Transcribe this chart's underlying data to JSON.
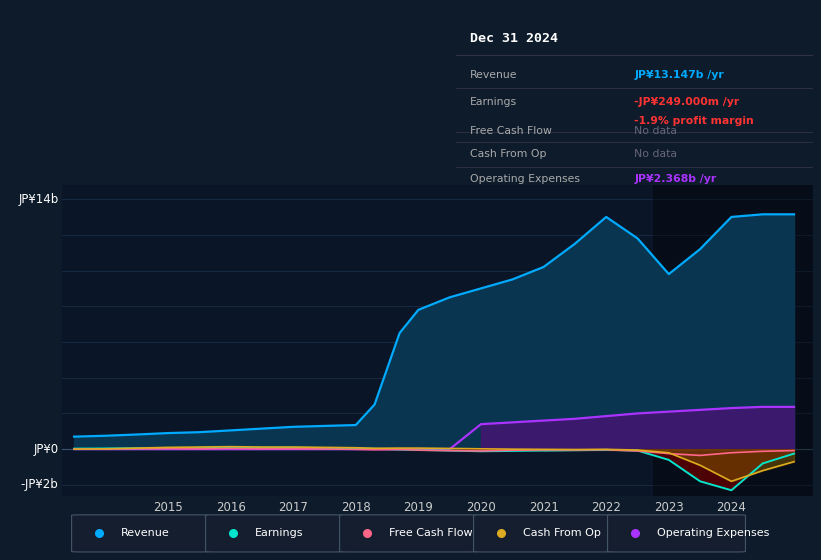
{
  "bg_color": "#0d1b2a",
  "plot_bg_color": "#0a1628",
  "grid_color": "#1e3050",
  "title_text": "Dec 31 2024",
  "ylabel_top": "JP¥14b",
  "ylabel_zero": "JP¥0",
  "ylabel_neg": "-JP¥2b",
  "years": [
    2013.5,
    2014.0,
    2014.5,
    2015.0,
    2015.5,
    2016.0,
    2016.5,
    2017.0,
    2017.5,
    2018.0,
    2018.3,
    2018.7,
    2019.0,
    2019.5,
    2020.0,
    2020.5,
    2021.0,
    2021.5,
    2022.0,
    2022.5,
    2023.0,
    2023.5,
    2024.0,
    2024.5,
    2025.0
  ],
  "revenue": [
    0.7,
    0.75,
    0.82,
    0.9,
    0.95,
    1.05,
    1.15,
    1.25,
    1.3,
    1.35,
    2.5,
    6.5,
    7.8,
    8.5,
    9.0,
    9.5,
    10.2,
    11.5,
    13.0,
    11.8,
    9.8,
    11.2,
    13.0,
    13.147,
    13.147
  ],
  "earnings": [
    0.03,
    0.04,
    0.05,
    0.06,
    0.06,
    0.08,
    0.07,
    0.08,
    0.06,
    0.04,
    0.02,
    -0.02,
    -0.05,
    -0.08,
    -0.12,
    -0.1,
    -0.08,
    -0.06,
    -0.04,
    -0.08,
    -0.6,
    -1.8,
    -2.3,
    -0.8,
    -0.249
  ],
  "free_cash_flow": [
    0.0,
    0.01,
    0.02,
    0.03,
    0.02,
    0.04,
    0.02,
    0.02,
    0.01,
    -0.01,
    -0.03,
    -0.02,
    -0.05,
    -0.08,
    -0.1,
    -0.06,
    -0.04,
    -0.04,
    -0.03,
    -0.1,
    -0.25,
    -0.35,
    -0.2,
    -0.12,
    -0.08
  ],
  "cash_from_op": [
    0.0,
    0.02,
    0.06,
    0.1,
    0.12,
    0.14,
    0.12,
    0.12,
    0.1,
    0.08,
    0.05,
    0.06,
    0.06,
    0.04,
    0.02,
    0.0,
    -0.01,
    -0.02,
    -0.01,
    -0.05,
    -0.2,
    -0.9,
    -1.8,
    -1.2,
    -0.7
  ],
  "operating_expenses": [
    0.0,
    0.0,
    0.0,
    0.0,
    0.0,
    0.0,
    0.0,
    0.0,
    0.0,
    0.0,
    0.0,
    0.0,
    0.0,
    0.0,
    1.4,
    1.5,
    1.6,
    1.7,
    1.85,
    2.0,
    2.1,
    2.2,
    2.3,
    2.368,
    2.368
  ],
  "revenue_color": "#00aaff",
  "revenue_fill": "#0a3550",
  "earnings_color": "#00e5cc",
  "earnings_fill_neg": "#660000",
  "free_cash_flow_color": "#ff6688",
  "cash_from_op_color": "#ddaa22",
  "operating_expenses_color": "#aa33ff",
  "operating_expenses_fill": "#3b1a6e",
  "legend_items": [
    {
      "label": "Revenue",
      "color": "#00aaff"
    },
    {
      "label": "Earnings",
      "color": "#00e5cc"
    },
    {
      "label": "Free Cash Flow",
      "color": "#ff6688"
    },
    {
      "label": "Cash From Op",
      "color": "#ddaa22"
    },
    {
      "label": "Operating Expenses",
      "color": "#aa33ff"
    }
  ],
  "xlim": [
    2013.3,
    2025.3
  ],
  "ylim": [
    -2.6,
    14.8
  ],
  "xticks": [
    2015,
    2016,
    2017,
    2018,
    2019,
    2020,
    2021,
    2022,
    2023,
    2024
  ],
  "highlight_x": 2022.75,
  "tooltip_rows": [
    {
      "label": "Revenue",
      "value": "JP¥13.147b /yr",
      "value_color": "#00aaff",
      "extra": "",
      "extra_color": ""
    },
    {
      "label": "Earnings",
      "value": "-JP¥249.000m /yr",
      "value_color": "#ff3333",
      "extra": "-1.9% profit margin",
      "extra_color": "#ff3333"
    },
    {
      "label": "Free Cash Flow",
      "value": "No data",
      "value_color": "#666677",
      "extra": "",
      "extra_color": ""
    },
    {
      "label": "Cash From Op",
      "value": "No data",
      "value_color": "#666677",
      "extra": "",
      "extra_color": ""
    },
    {
      "label": "Operating Expenses",
      "value": "JP¥2.368b /yr",
      "value_color": "#aa33ff",
      "extra": "",
      "extra_color": ""
    }
  ]
}
